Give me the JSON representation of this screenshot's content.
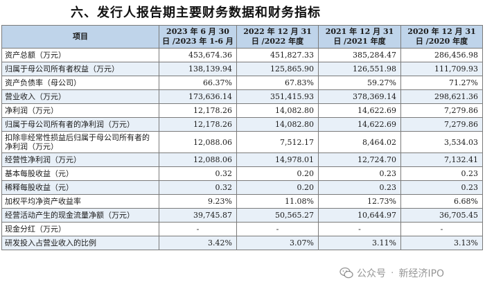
{
  "heading": "六、发行人报告期主要财务数据和财务指标",
  "table": {
    "headers": [
      "项目",
      "2023 年 6 月 30 日 /2023 年 1-6 月",
      "2022 年 12 月 31 日 /2022 年度",
      "2021 年 12 月 31 日 /2021 年度",
      "2020 年 12 月 31 日 /2020 年度"
    ],
    "rows": [
      {
        "label": "资产总额（万元）",
        "values": [
          "453,674.36",
          "451,827.33",
          "385,284.47",
          "286,456.98"
        ]
      },
      {
        "label": "归属于母公司所有者权益（万元）",
        "values": [
          "138,139.94",
          "125,865.90",
          "126,551.98",
          "111,709.93"
        ]
      },
      {
        "label": "资产负债率（母公司）",
        "values": [
          "66.37%",
          "67.83%",
          "59.27%",
          "71.27%"
        ]
      },
      {
        "label": "营业收入（万元）",
        "values": [
          "173,636.14",
          "351,415.93",
          "378,369.14",
          "298,621.36"
        ]
      },
      {
        "label": "净利润（万元）",
        "values": [
          "12,178.26",
          "14,082.80",
          "14,622.69",
          "7,279.86"
        ]
      },
      {
        "label": "归属于母公司所有者的净利润（万元）",
        "values": [
          "12,178.26",
          "14,082.80",
          "14,622.69",
          "7,279.86"
        ]
      },
      {
        "label": "扣除非经常性损益后归属于母公司所有者的净利润（万元）",
        "values": [
          "12,088.06",
          "7,512.17",
          "8,464.02",
          "3,534.03"
        ]
      },
      {
        "label": "经营性净利润（万元）",
        "values": [
          "12,088.06",
          "14,978.01",
          "12,724.70",
          "7,132.41"
        ]
      },
      {
        "label": "基本每股收益（元）",
        "values": [
          "0.32",
          "0.20",
          "0.23",
          "0.23"
        ]
      },
      {
        "label": "稀释每股收益（元）",
        "values": [
          "0.32",
          "0.20",
          "0.23",
          "0.23"
        ]
      },
      {
        "label": "加权平均净资产收益率",
        "values": [
          "9.23%",
          "11.08%",
          "12.73%",
          "6.68%"
        ]
      },
      {
        "label": "经营活动产生的现金流量净额（万元）",
        "values": [
          "39,745.87",
          "50,565.27",
          "10,644.97",
          "36,705.45"
        ]
      },
      {
        "label": "现金分红（万元）",
        "values": [
          "-",
          "-",
          "-",
          "-"
        ]
      },
      {
        "label": "研发投入占营业收入的比例",
        "values": [
          "3.42%",
          "3.07%",
          "3.11%",
          "3.13%"
        ]
      }
    ]
  },
  "watermark": {
    "account": "公众号",
    "separator": "·",
    "name": "新经济IPO"
  }
}
